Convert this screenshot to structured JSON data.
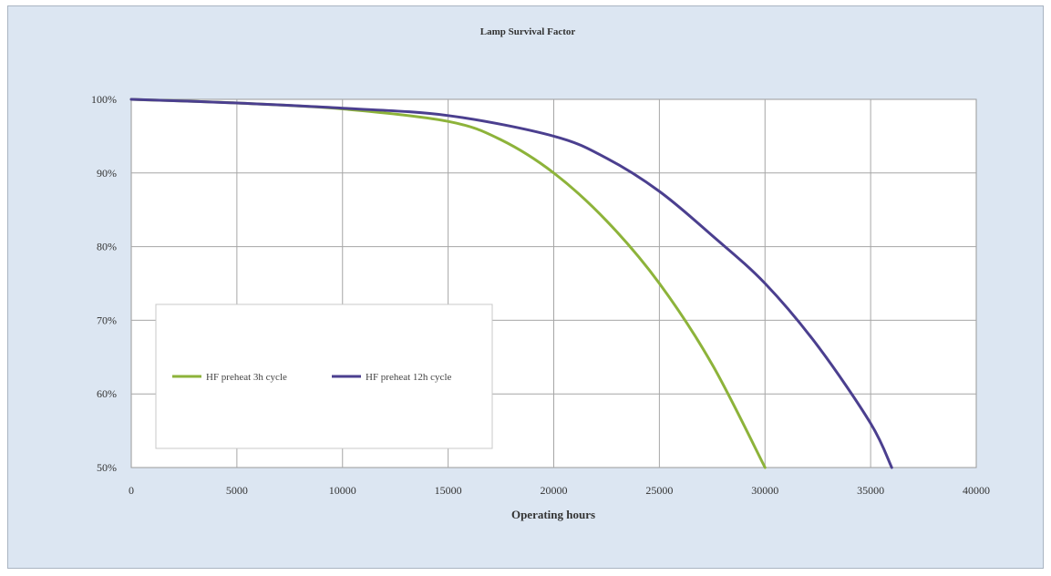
{
  "chart_data": {
    "type": "line",
    "title": "Lamp Survival Factor",
    "xlabel": "Operating hours",
    "ylabel": "",
    "xlim": [
      0,
      40000
    ],
    "ylim": [
      0.5,
      1.0
    ],
    "x_ticks": [
      0,
      5000,
      10000,
      15000,
      20000,
      25000,
      30000,
      35000,
      40000
    ],
    "x_tick_labels": [
      "0",
      "5000",
      "10000",
      "15000",
      "20000",
      "25000",
      "30000",
      "35000",
      "40000"
    ],
    "y_ticks": [
      0.5,
      0.6,
      0.7,
      0.8,
      0.9,
      1.0
    ],
    "y_tick_labels": [
      "50%",
      "60%",
      "70%",
      "80%",
      "90%",
      "100%"
    ],
    "grid": true,
    "legend_position": "lower-left inside",
    "background_color": "#dce6f2",
    "plot_background_color": "#ffffff",
    "series": [
      {
        "name": "HF preheat 3h cycle",
        "color": "#8db33a",
        "x": [
          0,
          5000,
          10000,
          15000,
          17500,
          20000,
          22500,
          25000,
          27500,
          30000
        ],
        "y": [
          1.0,
          0.995,
          0.987,
          0.97,
          0.945,
          0.9,
          0.835,
          0.75,
          0.64,
          0.5
        ]
      },
      {
        "name": "HF preheat 12h cycle",
        "color": "#4b3f8f",
        "x": [
          0,
          5000,
          10000,
          15000,
          20000,
          22500,
          25000,
          27500,
          30000,
          32500,
          35000,
          36000
        ],
        "y": [
          1.0,
          0.995,
          0.988,
          0.978,
          0.95,
          0.92,
          0.875,
          0.815,
          0.75,
          0.665,
          0.56,
          0.5
        ]
      }
    ]
  }
}
